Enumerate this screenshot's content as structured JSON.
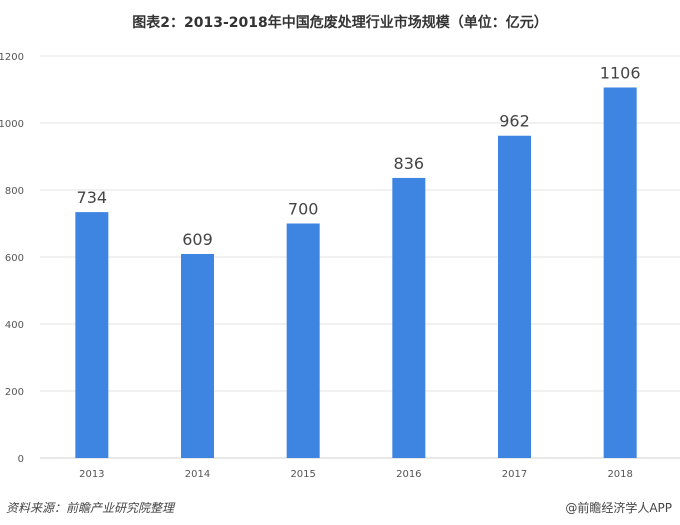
{
  "chart_data": {
    "type": "bar",
    "title": "图表2：2013-2018年中国危废处理行业市场规模（单位：亿元）",
    "categories": [
      "2013",
      "2014",
      "2015",
      "2016",
      "2017",
      "2018"
    ],
    "values": [
      734,
      609,
      700,
      836,
      962,
      1106
    ],
    "yticks": [
      0,
      200,
      400,
      600,
      800,
      1000,
      1200
    ],
    "ylim": [
      0,
      1200
    ],
    "grid": true,
    "bar_color": "#3d85e0"
  },
  "footer": {
    "source": "资料来源：前瞻产业研究院整理",
    "credit": "@前瞻经济学人APP"
  }
}
